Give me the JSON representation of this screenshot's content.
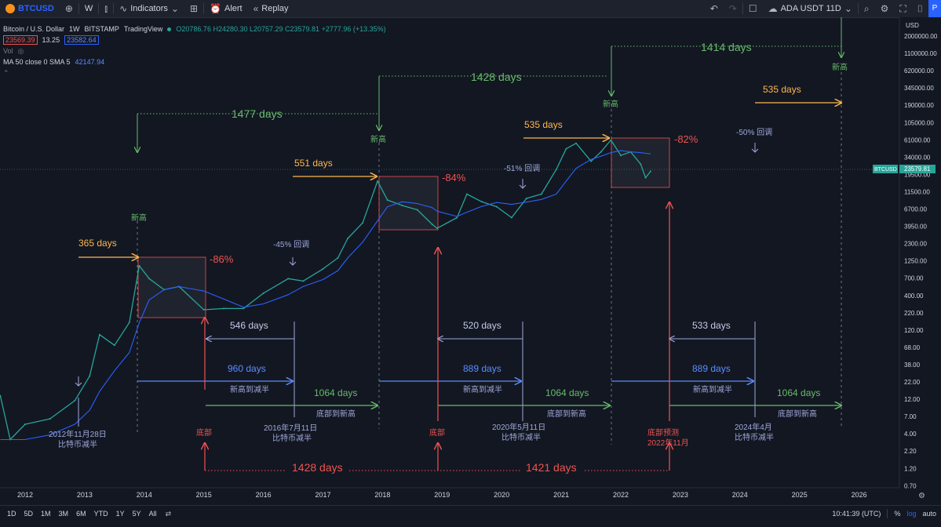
{
  "toolbar": {
    "symbol": "BTCUSD",
    "interval": "W",
    "indicators": "Indicators",
    "alert": "Alert",
    "replay": "Replay",
    "compare_symbol": "ADA USDT 11D",
    "publish": "P"
  },
  "legend": {
    "title": "Bitcoin / U.S. Dollar",
    "interval": "1W",
    "exchange": "BITSTAMP",
    "source": "TradingView",
    "ohlc": "O20786.76 H24280.30 L20757.29 C23579.81 +2777.96 (+13.35%)",
    "bid": "23569.39",
    "spread": "13.25",
    "ask": "23582.64",
    "vol": "Vol",
    "ma": "MA 50 close 0 SMA 5",
    "ma_value": "42147.94"
  },
  "price_scale": {
    "currency": "USD",
    "ticks": [
      "2000000.00",
      "1100000.00",
      "620000.00",
      "345000.00",
      "190000.00",
      "105000.00",
      "61000.00",
      "34000.00",
      "19500.00",
      "11500.00",
      "6700.00",
      "3950.00",
      "2300.00",
      "1250.00",
      "700.00",
      "400.00",
      "220.00",
      "120.00",
      "68.00",
      "38.00",
      "22.00",
      "12.00",
      "7.00",
      "4.00",
      "2.20",
      "1.20",
      "0.70"
    ],
    "current_label": "BTCUSD",
    "current_value": "23579.81"
  },
  "time_scale": {
    "ticks": [
      "2012",
      "2013",
      "2014",
      "2015",
      "2016",
      "2017",
      "2018",
      "2019",
      "2020",
      "2021",
      "2022",
      "2023",
      "2024",
      "2025",
      "2026"
    ]
  },
  "chart_data": {
    "type": "line",
    "title": "Bitcoin / U.S. Dollar",
    "scale": "log",
    "ylim": [
      0.7,
      2000000
    ],
    "x": [
      "2011-08",
      "2011-10",
      "2012-01",
      "2012-06",
      "2012-11",
      "2013-02",
      "2013-04",
      "2013-07",
      "2013-10",
      "2013-12",
      "2014-02",
      "2014-05",
      "2014-08",
      "2015-01",
      "2015-05",
      "2015-09",
      "2016-01",
      "2016-06",
      "2016-09",
      "2017-01",
      "2017-04",
      "2017-06",
      "2017-09",
      "2017-12",
      "2018-02",
      "2018-05",
      "2018-08",
      "2018-11",
      "2018-12",
      "2019-04",
      "2019-06",
      "2019-09",
      "2019-12",
      "2020-03",
      "2020-06",
      "2020-09",
      "2020-12",
      "2021-02",
      "2021-04",
      "2021-07",
      "2021-09",
      "2021-11",
      "2022-01",
      "2022-03",
      "2022-05",
      "2022-06",
      "2022-07"
    ],
    "series": [
      {
        "values": [
          13,
          3,
          5,
          6,
          11,
          25,
          100,
          70,
          150,
          1000,
          650,
          450,
          500,
          230,
          240,
          240,
          400,
          650,
          600,
          900,
          1300,
          2500,
          4200,
          17000,
          9000,
          7500,
          6500,
          4000,
          3500,
          5000,
          11000,
          8500,
          7200,
          5000,
          9500,
          11000,
          25000,
          50000,
          60000,
          33000,
          45000,
          67000,
          40000,
          45000,
          30000,
          19000,
          23580
        ]
      },
      {
        "values": [
          3,
          3,
          3,
          3.5,
          5,
          8,
          15,
          30,
          55,
          150,
          320,
          450,
          500,
          430,
          330,
          250,
          280,
          380,
          500,
          630,
          850,
          1300,
          2200,
          4500,
          7200,
          8500,
          8000,
          7000,
          6200,
          5200,
          6000,
          7300,
          8300,
          7800,
          8400,
          9200,
          11000,
          17000,
          26000,
          35000,
          39000,
          44000,
          47000,
          45000,
          44000,
          43000,
          42148
        ]
      }
    ]
  },
  "annotations": {
    "days_365": "365 days",
    "days_551": "551 days",
    "days_535a": "535 days",
    "days_535b": "535 days",
    "days_1477": "1477 days",
    "days_1428_top": "1428 days",
    "days_1414": "1414 days",
    "new_high": "新高",
    "dd_86": "-86%",
    "dd_84": "-84%",
    "dd_82": "-82%",
    "retrace_45": "-45% 回调",
    "retrace_51": "-51% 回调",
    "retrace_50": "-50% 回调",
    "days_546": "546 days",
    "days_520": "520 days",
    "days_533": "533 days",
    "days_960": "960 days",
    "days_889a": "889 days",
    "days_889b": "889 days",
    "high_to_halving": "新高到减半",
    "days_1064": "1064 days",
    "bottom_to_high": "底部到新高",
    "halving_2012_date": "2012年11月28日",
    "halving_2016_date": "2016年7月11日",
    "halving_2020_date": "2020年5月11日",
    "halving_2024_date": "2024年4月",
    "halving_label": "比特币减半",
    "bottom": "底部",
    "bottom_forecast": "底部预测",
    "bottom_forecast_date": "2022年11月",
    "days_1428_bottom": "1428 days",
    "days_1421": "1421 days"
  },
  "colors": {
    "background": "#131722",
    "price_line": "#26a69a",
    "sma_line": "#2962ff",
    "high_text": "#4caf50",
    "orange": "#ffb74d",
    "drawdown_red": "#ef5350",
    "blue": "#5b8cff",
    "lavender": "#9fa8da",
    "green": "#66bb6a"
  },
  "bottom_bar": {
    "ranges": [
      "1D",
      "5D",
      "1M",
      "3M",
      "6M",
      "YTD",
      "1Y",
      "5Y",
      "All"
    ],
    "time": "10:41:39 (UTC)",
    "percent": "%",
    "log": "log",
    "auto": "auto"
  }
}
